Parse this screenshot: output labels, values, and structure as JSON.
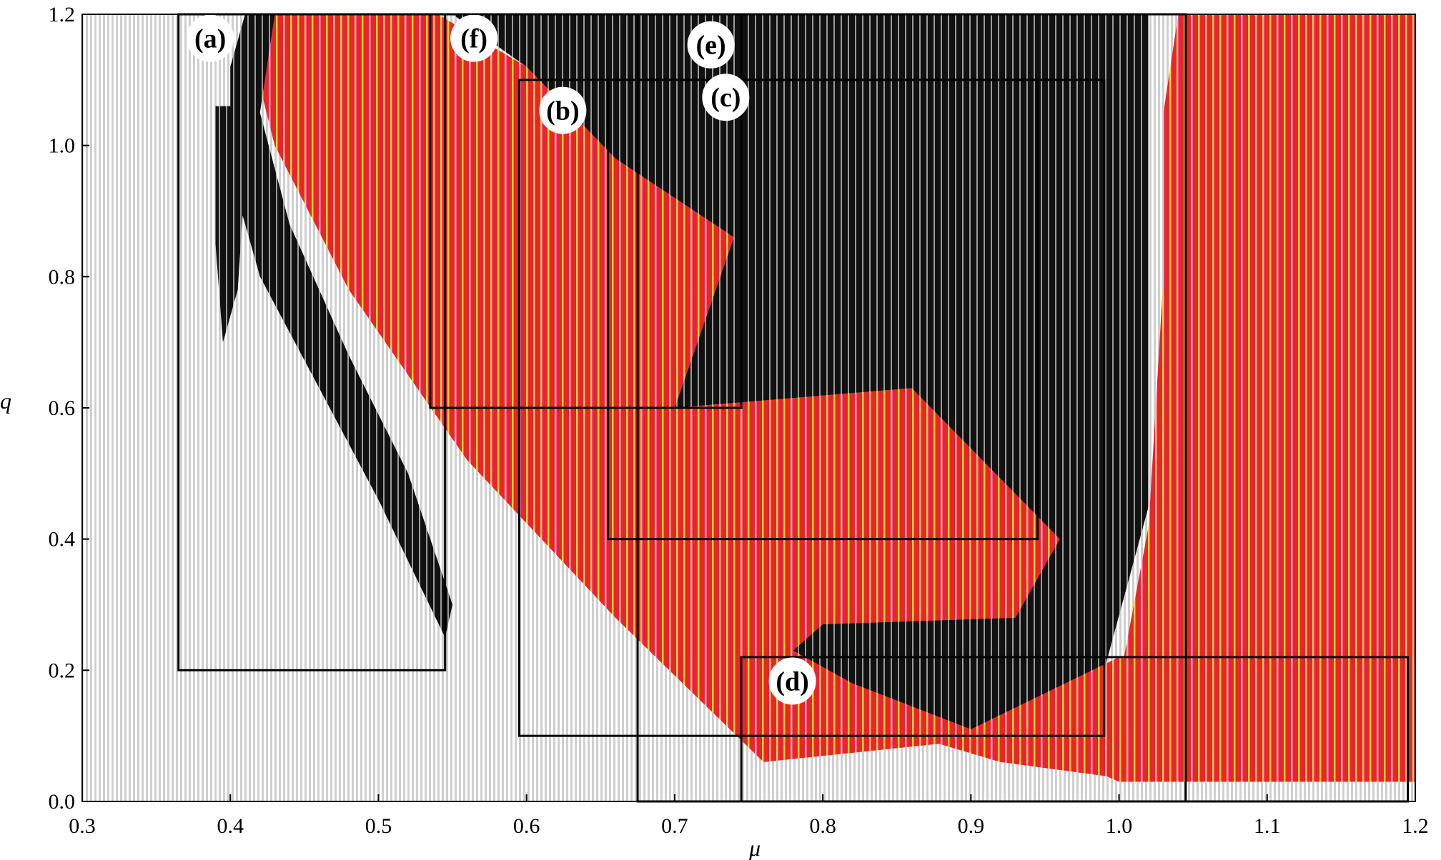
{
  "chart_data": {
    "type": "heatmap",
    "xlabel": "μ",
    "ylabel": "q",
    "xlim": [
      0.3,
      1.2
    ],
    "ylim": [
      0.0,
      1.2
    ],
    "x_ticks": [
      "0.3",
      "0.4",
      "0.5",
      "0.6",
      "0.7",
      "0.8",
      "0.9",
      "1.0",
      "1.1",
      "1.2"
    ],
    "y_ticks": [
      "0.0",
      "0.2",
      "0.4",
      "0.6",
      "0.8",
      "1.0",
      "1.2"
    ],
    "grid": false,
    "colors": {
      "background": "#ffffff",
      "light_region": "#d9d9d9",
      "dark_region": "#1a1a1a",
      "red_region": "#e8262a",
      "pink_accent": "#f05aa0",
      "yellow_accent": "#f5d23c",
      "box_stroke": "#000000"
    },
    "regions": [
      {
        "name": "red-band-left",
        "color": "red_region",
        "points": [
          [
            0.42,
            1.2
          ],
          [
            0.54,
            1.2
          ],
          [
            0.6,
            1.12
          ],
          [
            0.66,
            0.98
          ],
          [
            0.74,
            0.86
          ],
          [
            0.7,
            0.6
          ],
          [
            0.86,
            0.63
          ],
          [
            0.96,
            0.4
          ],
          [
            0.93,
            0.27
          ],
          [
            0.8,
            0.26
          ],
          [
            0.93,
            0.1
          ],
          [
            0.76,
            0.06
          ],
          [
            0.66,
            0.28
          ],
          [
            0.56,
            0.52
          ],
          [
            0.48,
            0.78
          ],
          [
            0.43,
            1.0
          ],
          [
            0.41,
            1.18
          ]
        ]
      },
      {
        "name": "dark-band-left",
        "color": "dark_region",
        "points": [
          [
            0.41,
            1.2
          ],
          [
            0.43,
            1.2
          ],
          [
            0.42,
            1.05
          ],
          [
            0.44,
            0.88
          ],
          [
            0.48,
            0.68
          ],
          [
            0.52,
            0.5
          ],
          [
            0.55,
            0.3
          ],
          [
            0.545,
            0.25
          ],
          [
            0.5,
            0.46
          ],
          [
            0.46,
            0.63
          ],
          [
            0.42,
            0.8
          ],
          [
            0.4,
            0.96
          ],
          [
            0.4,
            1.12
          ]
        ]
      },
      {
        "name": "dark-strip-a",
        "color": "dark_region",
        "points": [
          [
            0.39,
            1.06
          ],
          [
            0.405,
            1.06
          ],
          [
            0.41,
            0.95
          ],
          [
            0.405,
            0.78
          ],
          [
            0.395,
            0.7
          ],
          [
            0.39,
            0.85
          ]
        ]
      },
      {
        "name": "dark-main-region",
        "color": "dark_region",
        "points": [
          [
            0.55,
            1.2
          ],
          [
            1.02,
            1.2
          ],
          [
            1.02,
            0.45
          ],
          [
            0.99,
            0.2
          ],
          [
            0.95,
            0.07
          ],
          [
            0.9,
            0.11
          ],
          [
            0.82,
            0.18
          ],
          [
            0.78,
            0.23
          ],
          [
            0.8,
            0.27
          ],
          [
            0.93,
            0.28
          ],
          [
            0.96,
            0.4
          ],
          [
            0.86,
            0.63
          ],
          [
            0.7,
            0.6
          ],
          [
            0.74,
            0.86
          ],
          [
            0.66,
            0.98
          ],
          [
            0.6,
            1.12
          ]
        ]
      },
      {
        "name": "red-region-right",
        "color": "red_region",
        "points": [
          [
            1.04,
            1.2
          ],
          [
            1.2,
            1.2
          ],
          [
            1.2,
            0.03
          ],
          [
            1.0,
            0.03
          ],
          [
            0.97,
            0.06
          ],
          [
            1.0,
            0.18
          ],
          [
            1.02,
            0.42
          ],
          [
            1.03,
            0.8
          ],
          [
            1.03,
            1.05
          ]
        ]
      },
      {
        "name": "red-band-bottom",
        "color": "red_region",
        "points": [
          [
            0.76,
            0.22
          ],
          [
            0.8,
            0.14
          ],
          [
            0.92,
            0.06
          ],
          [
            1.02,
            0.03
          ],
          [
            1.1,
            0.08
          ],
          [
            1.05,
            0.18
          ],
          [
            1.0,
            0.22
          ],
          [
            0.9,
            0.11
          ],
          [
            0.82,
            0.18
          ]
        ]
      }
    ],
    "boxes": [
      {
        "label": "(a)",
        "mu": [
          0.365,
          0.545
        ],
        "q": [
          0.2,
          1.2
        ],
        "marker": {
          "mu": 0.372,
          "q": 1.17
        }
      },
      {
        "label": "(b)",
        "mu": [
          0.595,
          0.99
        ],
        "q": [
          0.1,
          1.1
        ],
        "marker": {
          "mu": 0.61,
          "q": 1.06
        }
      },
      {
        "label": "(c)",
        "mu": [
          0.655,
          0.945
        ],
        "q": [
          0.4,
          1.1
        ],
        "marker": {
          "mu": 0.72,
          "q": 1.08
        }
      },
      {
        "label": "(d)",
        "mu": [
          0.745,
          1.195
        ],
        "q": [
          0.0,
          0.22
        ],
        "marker": {
          "mu": 0.765,
          "q": 0.19
        }
      },
      {
        "label": "(e)",
        "mu": [
          0.675,
          1.045
        ],
        "q": [
          0.0,
          1.2
        ],
        "marker": {
          "mu": 0.71,
          "q": 1.16
        }
      },
      {
        "label": "(f)",
        "mu": [
          0.535,
          0.745
        ],
        "q": [
          0.6,
          1.2
        ],
        "marker": {
          "mu": 0.55,
          "q": 1.17
        }
      }
    ]
  }
}
